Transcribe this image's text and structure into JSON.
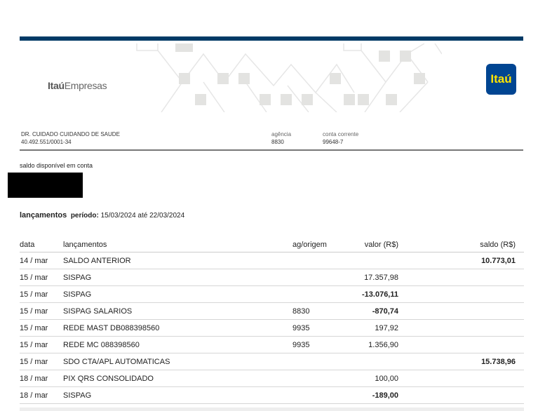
{
  "header": {
    "brand_bold": "Itaú",
    "brand_rest": "Empresas",
    "logo_text": "Itaú",
    "bar_color": "#003a66",
    "logo_color": "#004592"
  },
  "account": {
    "name": "DR. CUIDADO CUIDANDO DE SAUDE",
    "cnpj": "40.492.551/0001-34",
    "agencia_label": "agência",
    "agencia": "8830",
    "conta_label": "conta corrente",
    "conta": "99648-7"
  },
  "balance": {
    "label": "saldo disponível em conta"
  },
  "period": {
    "title": "lançamentos",
    "label": "período:",
    "value": "15/03/2024 até 22/03/2024"
  },
  "table": {
    "headers": [
      "data",
      "lançamentos",
      "ag/origem",
      "valor (R$)",
      "saldo (R$)"
    ],
    "rows": [
      {
        "data": "14 / mar",
        "desc": "SALDO ANTERIOR",
        "ag": "",
        "valor": "",
        "saldo": "10.773,01"
      },
      {
        "data": "15 / mar",
        "desc": "SISPAG",
        "ag": "",
        "valor": "17.357,98",
        "saldo": ""
      },
      {
        "data": "15 / mar",
        "desc": "SISPAG",
        "ag": "",
        "valor": "-13.076,11",
        "saldo": ""
      },
      {
        "data": "15 / mar",
        "desc": "SISPAG SALARIOS",
        "ag": "8830",
        "valor": "-870,74",
        "saldo": ""
      },
      {
        "data": "15 / mar",
        "desc": "REDE MAST DB088398560",
        "ag": "9935",
        "valor": "197,92",
        "saldo": ""
      },
      {
        "data": "15 / mar",
        "desc": "REDE MC 088398560",
        "ag": "9935",
        "valor": "1.356,90",
        "saldo": ""
      },
      {
        "data": "15 / mar",
        "desc": "SDO CTA/APL AUTOMATICAS",
        "ag": "",
        "valor": "",
        "saldo": "15.738,96"
      },
      {
        "data": "18 / mar",
        "desc": "PIX QRS CONSOLIDADO",
        "ag": "",
        "valor": "100,00",
        "saldo": ""
      },
      {
        "data": "18 / mar",
        "desc": "SISPAG",
        "ag": "",
        "valor": "-189,00",
        "saldo": ""
      }
    ]
  }
}
